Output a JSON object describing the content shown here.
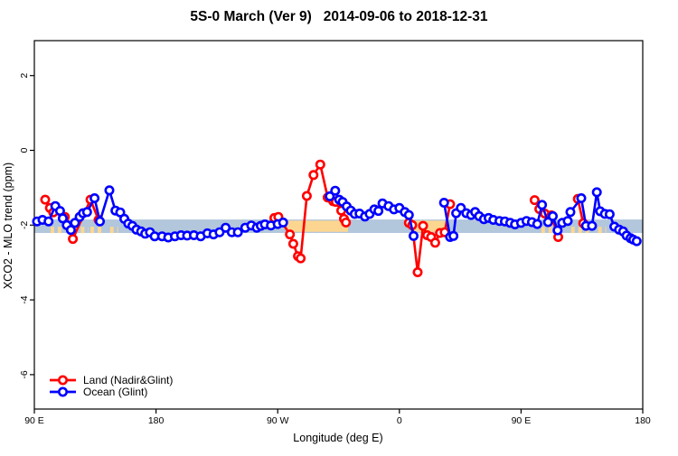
{
  "title": "5S-0 March (Ver 9)   2014-09-06 to 2018-12-31",
  "legend": {
    "items": [
      {
        "label": "Land (Nadir&Glint)",
        "color": "#ff0000"
      },
      {
        "label": "Ocean (Glint)",
        "color": "#0000ff"
      }
    ]
  },
  "chart_data": {
    "type": "line",
    "title": "5S-0 March (Ver 9)   2014-09-06 to 2018-12-31",
    "xlabel": "Longitude (deg E)",
    "ylabel": "XCO2 - MLO trend (ppm)",
    "marker": "open-circle",
    "x_axis": {
      "note": "longitude axis wraps eastward from 90E; positions are degrees along axis 90..540",
      "range": [
        90,
        540
      ],
      "ticks": [
        {
          "pos": 90,
          "label": "90 E"
        },
        {
          "pos": 180,
          "label": "180"
        },
        {
          "pos": 270,
          "label": "90 W"
        },
        {
          "pos": 360,
          "label": "0"
        },
        {
          "pos": 450,
          "label": "90 E"
        },
        {
          "pos": 540,
          "label": "180"
        }
      ]
    },
    "y_axis": {
      "range": [
        -6.9,
        2.9
      ],
      "ticks": [
        2,
        0,
        -2,
        -4,
        -6
      ]
    },
    "band": {
      "v_top": -1.85,
      "v_bottom": -2.21,
      "color": "#b2c6dc",
      "dash_color": "#fcd691",
      "dash_value": -2.13,
      "dash_segments": [
        [
          102,
          110
        ],
        [
          119,
          130
        ],
        [
          131.5,
          141
        ],
        [
          146,
          152
        ],
        [
          465,
          480
        ],
        [
          487,
          500
        ],
        [
          507,
          513
        ]
      ],
      "highlight_color": "#fcd691",
      "highlight_v_top": -1.88,
      "highlight_v_bottom": -2.18,
      "highlight_segments": [
        [
          277,
          322
        ],
        [
          371,
          393.5
        ]
      ]
    },
    "series": [
      {
        "name": "Land (Nadir&Glint)",
        "color": "#ff0000",
        "segments": [
          [
            [
              98,
              -1.32
            ],
            [
              101.5,
              -1.54
            ],
            [
              104,
              -1.66
            ],
            [
              112.5,
              -1.78
            ],
            [
              118.5,
              -2.37
            ],
            [
              131.5,
              -1.32
            ],
            [
              137.5,
              -1.86
            ]
          ],
          [
            [
              267.5,
              -1.81
            ],
            [
              270.5,
              -1.78
            ],
            [
              279,
              -2.25
            ],
            [
              281.5,
              -2.5
            ],
            [
              285,
              -2.83
            ],
            [
              287,
              -2.89
            ],
            [
              291.5,
              -1.22
            ],
            [
              296.5,
              -0.66
            ],
            [
              301.5,
              -0.38
            ],
            [
              307,
              -1.26
            ],
            [
              311,
              -1.36
            ],
            [
              313,
              -1.38
            ],
            [
              317,
              -1.61
            ],
            [
              319,
              -1.83
            ],
            [
              320.5,
              -1.93
            ]
          ],
          [
            [
              367,
              -1.94
            ],
            [
              369.5,
              -2.0
            ],
            [
              373.5,
              -3.26
            ],
            [
              377.5,
              -2.02
            ],
            [
              380.5,
              -2.27
            ],
            [
              383.5,
              -2.32
            ],
            [
              386.5,
              -2.47
            ],
            [
              390,
              -2.21
            ],
            [
              393.5,
              -2.19
            ],
            [
              397.5,
              -1.44
            ]
          ],
          [
            [
              460,
              -1.33
            ],
            [
              463.5,
              -1.57
            ],
            [
              467.5,
              -1.69
            ],
            [
              472.5,
              -1.74
            ],
            [
              477.5,
              -2.32
            ]
          ],
          [
            [
              492,
              -1.3
            ],
            [
              496,
              -1.95
            ]
          ]
        ]
      },
      {
        "name": "Ocean (Glint)",
        "color": "#0000ff",
        "segments": [
          [
            [
              92,
              -1.9
            ],
            [
              96,
              -1.86
            ],
            [
              100.5,
              -1.9
            ],
            [
              105.5,
              -1.49
            ],
            [
              109,
              -1.62
            ],
            [
              111,
              -1.82
            ],
            [
              114,
              -2.0
            ],
            [
              117,
              -2.13
            ],
            [
              120,
              -1.94
            ],
            [
              123.5,
              -1.78
            ],
            [
              126,
              -1.68
            ],
            [
              129,
              -1.65
            ],
            [
              134.5,
              -1.28
            ],
            [
              138.5,
              -1.9
            ],
            [
              145.5,
              -1.07
            ],
            [
              150,
              -1.61
            ],
            [
              153.5,
              -1.66
            ],
            [
              156.5,
              -1.83
            ],
            [
              159.5,
              -1.96
            ],
            [
              162.5,
              -2.02
            ],
            [
              165.5,
              -2.12
            ],
            [
              169,
              -2.17
            ],
            [
              172,
              -2.23
            ],
            [
              175.5,
              -2.19
            ],
            [
              179,
              -2.3
            ],
            [
              184.5,
              -2.3
            ],
            [
              189,
              -2.33
            ],
            [
              194,
              -2.3
            ],
            [
              198.5,
              -2.27
            ],
            [
              203,
              -2.28
            ],
            [
              208,
              -2.27
            ],
            [
              213,
              -2.3
            ],
            [
              218,
              -2.22
            ],
            [
              222.5,
              -2.25
            ],
            [
              227,
              -2.19
            ],
            [
              231.5,
              -2.07
            ],
            [
              236,
              -2.19
            ],
            [
              240.5,
              -2.19
            ],
            [
              246,
              -2.07
            ],
            [
              250.5,
              -2.01
            ],
            [
              254.5,
              -2.07
            ],
            [
              257.5,
              -2.02
            ],
            [
              260.5,
              -1.98
            ],
            [
              265,
              -2.01
            ],
            [
              270,
              -1.97
            ],
            [
              274,
              -1.93
            ]
          ],
          [
            [
              308.5,
              -1.23
            ],
            [
              312.5,
              -1.08
            ],
            [
              315.5,
              -1.32
            ],
            [
              318,
              -1.38
            ],
            [
              321,
              -1.5
            ],
            [
              324,
              -1.61
            ],
            [
              327,
              -1.7
            ],
            [
              330.5,
              -1.69
            ],
            [
              334.5,
              -1.77
            ],
            [
              338,
              -1.7
            ],
            [
              341.5,
              -1.58
            ],
            [
              344.5,
              -1.62
            ],
            [
              347.5,
              -1.42
            ],
            [
              352,
              -1.49
            ],
            [
              356,
              -1.58
            ],
            [
              360,
              -1.54
            ],
            [
              364,
              -1.65
            ],
            [
              367,
              -1.73
            ],
            [
              370.5,
              -2.29
            ]
          ],
          [
            [
              393,
              -1.4
            ],
            [
              397.5,
              -2.32
            ],
            [
              400,
              -2.29
            ],
            [
              402,
              -1.68
            ],
            [
              405.5,
              -1.54
            ],
            [
              409.5,
              -1.68
            ],
            [
              413,
              -1.73
            ],
            [
              416,
              -1.65
            ],
            [
              419,
              -1.76
            ],
            [
              422.5,
              -1.84
            ],
            [
              426,
              -1.81
            ],
            [
              429.5,
              -1.86
            ],
            [
              434,
              -1.89
            ],
            [
              438,
              -1.9
            ],
            [
              442,
              -1.94
            ],
            [
              445.5,
              -1.98
            ],
            [
              450,
              -1.94
            ],
            [
              454,
              -1.89
            ],
            [
              458,
              -1.92
            ],
            [
              462,
              -1.97
            ],
            [
              465.5,
              -1.46
            ],
            [
              470,
              -1.92
            ],
            [
              473.5,
              -1.76
            ],
            [
              477,
              -2.14
            ],
            [
              480.5,
              -1.94
            ],
            [
              484.5,
              -1.89
            ],
            [
              486.5,
              -1.65
            ],
            [
              494.5,
              -1.28
            ],
            [
              498,
              -2.02
            ],
            [
              502.5,
              -2.02
            ],
            [
              506,
              -1.12
            ],
            [
              508.5,
              -1.63
            ],
            [
              512,
              -1.7
            ],
            [
              515.5,
              -1.71
            ],
            [
              519,
              -2.04
            ],
            [
              522.5,
              -2.12
            ],
            [
              525.5,
              -2.17
            ],
            [
              528,
              -2.28
            ],
            [
              531,
              -2.35
            ],
            [
              533,
              -2.39
            ],
            [
              535.5,
              -2.43
            ]
          ]
        ]
      }
    ]
  }
}
